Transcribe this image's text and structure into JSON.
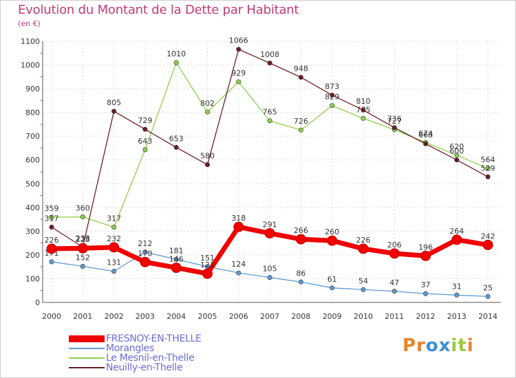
{
  "header": {
    "title": "Evolution du Montant de la Dette par Habitant",
    "unit": "(en €)"
  },
  "logo": {
    "text": "Proxiti",
    "colors": [
      "#e8842a",
      "#e8842a",
      "#3a8fd6",
      "#3a8fd6",
      "#9bc93a",
      "#9bc93a",
      "#e8842a"
    ]
  },
  "chart_data": {
    "type": "line",
    "title": "Evolution du Montant de la Dette par Habitant",
    "ylabel": "(en €)",
    "xlabel": "",
    "ylim": [
      0,
      1100
    ],
    "y_ticks": [
      "0",
      "100",
      "200",
      "300",
      "400",
      "500",
      "600",
      "700",
      "800",
      "900",
      "1000",
      "1100"
    ],
    "categories": [
      "2000",
      "2001",
      "2002",
      "2003",
      "2004",
      "2005",
      "2006",
      "2007",
      "2008",
      "2009",
      "2010",
      "2011",
      "2012",
      "2013",
      "2014"
    ],
    "grid": true,
    "legend_position": "bottom-left",
    "series": [
      {
        "name": "Morangles",
        "color": "#5f9ad2",
        "values": [
          171,
          152,
          131,
          212,
          181,
          151,
          124,
          105,
          86,
          61,
          54,
          47,
          37,
          31,
          25
        ],
        "labels": [
          "171",
          "152",
          "131",
          "212",
          "181",
          "151",
          "124",
          "105",
          "86",
          "61",
          "54",
          "47",
          "37",
          "31",
          "25"
        ]
      },
      {
        "name": "Le Mesnil-en-Thelle",
        "color": "#8ed04a",
        "values": [
          359,
          360,
          317,
          643,
          1010,
          802,
          929,
          765,
          726,
          829,
          775,
          727,
          674,
          620,
          564
        ],
        "labels": [
          "359",
          "360",
          "317",
          "643",
          "1010",
          "802",
          "929",
          "765",
          "726",
          "829",
          "775",
          "727",
          "674",
          "620",
          "564"
        ]
      },
      {
        "name": "Neuilly-en-Thelle",
        "color": "#6b1f24",
        "values": [
          317,
          233,
          805,
          729,
          653,
          580,
          1066,
          1008,
          948,
          873,
          810,
          736,
          668,
          600,
          529
        ],
        "labels": [
          "317",
          "233",
          "805",
          "729",
          "653",
          "580",
          "1066",
          "1008",
          "948",
          "873",
          "810",
          "736",
          "668",
          "600",
          "529"
        ]
      },
      {
        "name": "FRESNOY-EN-THELLE",
        "color": "#f00000",
        "values": [
          226,
          228,
          232,
          170,
          146,
          121,
          318,
          291,
          266,
          260,
          226,
          206,
          196,
          264,
          242
        ],
        "labels": [
          "226",
          "228",
          "232",
          "170",
          "146",
          "121",
          "318",
          "291",
          "266",
          "260",
          "226",
          "206",
          "196",
          "264",
          "242"
        ]
      }
    ]
  },
  "legend": {
    "items": [
      {
        "label": "FRESNOY-EN-THELLE",
        "color": "#f00000",
        "text_color": "#6b6bd8"
      },
      {
        "label": "Morangles",
        "color": "#5f9ad2",
        "text_color": "#6b6bd8"
      },
      {
        "label": "Le Mesnil-en-Thelle",
        "color": "#8ed04a",
        "text_color": "#6b6bd8"
      },
      {
        "label": "Neuilly-en-Thelle",
        "color": "#6b1f24",
        "text_color": "#6b6bd8"
      }
    ]
  }
}
